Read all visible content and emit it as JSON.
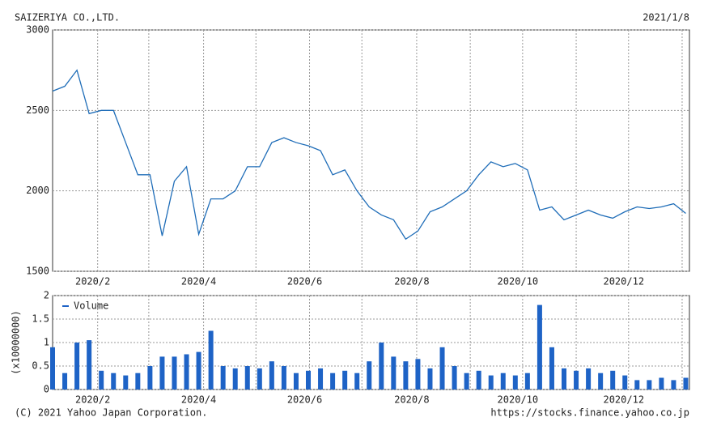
{
  "chart_data": [
    {
      "type": "line",
      "title": "SAIZERIYA CO.,LTD.",
      "date": "2021/1/8",
      "color": "#1f6db8",
      "values": [
        2620,
        2650,
        2750,
        2480,
        2500,
        2500,
        2300,
        2100,
        2100,
        1720,
        2060,
        2150,
        1730,
        1950,
        1950,
        2000,
        2150,
        2150,
        2300,
        2330,
        2300,
        2280,
        2250,
        2100,
        2130,
        2000,
        1900,
        1850,
        1820,
        1700,
        1750,
        1870,
        1900,
        1950,
        2000,
        2100,
        2180,
        2150,
        2170,
        2130,
        1880,
        1900,
        1820,
        1850,
        1880,
        1850,
        1830,
        1870,
        1900,
        1890,
        1900,
        1920,
        1860
      ],
      "xlim": [
        0,
        52.3
      ],
      "xticks": [
        {
          "value": 3.7,
          "label": "2020/2"
        },
        {
          "value": 12.4,
          "label": "2020/4"
        },
        {
          "value": 21.1,
          "label": "2020/6"
        },
        {
          "value": 29.9,
          "label": "2020/8"
        },
        {
          "value": 38.6,
          "label": "2020/10"
        },
        {
          "value": 47.3,
          "label": "2020/12"
        }
      ],
      "xgrid": [
        7.9,
        16.7,
        25.4,
        34.3,
        43.0,
        51.7
      ],
      "ylim": [
        1500,
        3000
      ],
      "yticks": [
        1500,
        2000,
        2500,
        3000
      ],
      "grid": true
    },
    {
      "type": "bar",
      "ylabel": "(x10000000)",
      "series": [
        {
          "name": "Volume",
          "color": "#1e63c6",
          "values": [
            0.9,
            0.35,
            1.0,
            1.05,
            0.4,
            0.35,
            0.3,
            0.35,
            0.5,
            0.7,
            0.7,
            0.75,
            0.8,
            1.25,
            0.5,
            0.45,
            0.5,
            0.45,
            0.6,
            0.5,
            0.35,
            0.4,
            0.45,
            0.35,
            0.4,
            0.35,
            0.6,
            1.0,
            0.7,
            0.6,
            0.65,
            0.45,
            0.9,
            0.5,
            0.35,
            0.4,
            0.3,
            0.35,
            0.3,
            0.35,
            1.8,
            0.9,
            0.45,
            0.4,
            0.45,
            0.35,
            0.4,
            0.3,
            0.2,
            0.2,
            0.25,
            0.2,
            0.25
          ]
        }
      ],
      "xlim": [
        0,
        52.3
      ],
      "xticks": [
        {
          "value": 3.7,
          "label": "2020/2"
        },
        {
          "value": 12.4,
          "label": "2020/4"
        },
        {
          "value": 21.1,
          "label": "2020/6"
        },
        {
          "value": 29.9,
          "label": "2020/8"
        },
        {
          "value": 38.6,
          "label": "2020/10"
        },
        {
          "value": 47.3,
          "label": "2020/12"
        }
      ],
      "xgrid": [
        7.9,
        16.7,
        25.4,
        34.3,
        43.0,
        51.7
      ],
      "ylim": [
        0,
        2
      ],
      "yticks": [
        0,
        0.5,
        1,
        1.5,
        2
      ],
      "grid": true
    }
  ],
  "footer": {
    "copyright": "(C) 2021 Yahoo Japan Corporation.",
    "url": "https://stocks.finance.yahoo.co.jp"
  }
}
